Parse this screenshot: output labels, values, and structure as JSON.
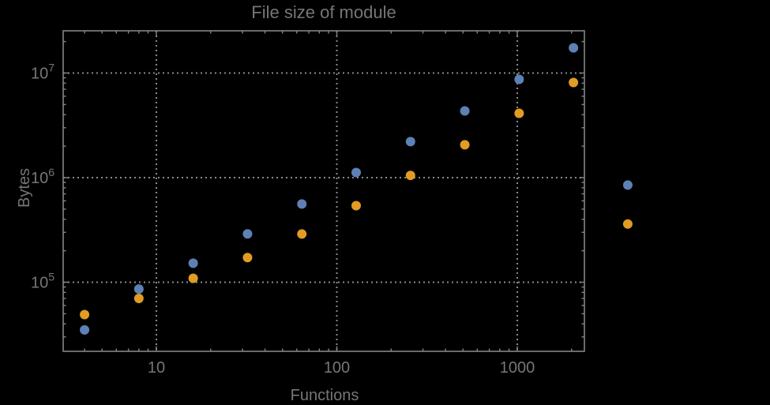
{
  "window": {
    "background": "#000000"
  },
  "chart_data": {
    "type": "scatter",
    "title": "File size of module",
    "xlabel": "Functions",
    "ylabel": "Bytes",
    "xscale": "log",
    "yscale": "log",
    "xlim": [
      3.05,
      2360
    ],
    "ylim": [
      22600,
      25300000
    ],
    "grid": {
      "style": "dotted",
      "x_values": [
        10,
        100,
        1000
      ],
      "y_values": [
        100000,
        1000000,
        10000000
      ]
    },
    "x_ticks": {
      "major": [
        {
          "value": 10,
          "label": "10"
        },
        {
          "value": 100,
          "label": "100"
        },
        {
          "value": 1000,
          "label": "1000"
        }
      ],
      "minor": "log-steps-2-to-9"
    },
    "y_ticks": {
      "major": [
        {
          "value": 100000,
          "label_base": "10",
          "label_exponent": "5"
        },
        {
          "value": 1000000,
          "label_base": "10",
          "label_exponent": "6"
        },
        {
          "value": 10000000,
          "label_base": "10",
          "label_exponent": "7"
        }
      ],
      "minor": "log-steps-2-to-9"
    },
    "legend": "none-visible",
    "marker": {
      "shape": "filled-circle",
      "radius_px": 6
    },
    "series": [
      {
        "name": "blue-series",
        "color": "#5E81B5",
        "points": [
          [
            4,
            35000
          ],
          [
            8,
            86000
          ],
          [
            16,
            152000
          ],
          [
            32,
            290000
          ],
          [
            64,
            560000
          ],
          [
            128,
            1120000
          ],
          [
            256,
            2210000
          ],
          [
            512,
            4340000
          ],
          [
            1024,
            8700000
          ],
          [
            2048,
            17400000
          ],
          [
            4096,
            850000
          ]
        ]
      },
      {
        "name": "orange-series",
        "color": "#E19C24",
        "points": [
          [
            4,
            49000
          ],
          [
            8,
            70000
          ],
          [
            16,
            109000
          ],
          [
            32,
            172000
          ],
          [
            64,
            289000
          ],
          [
            128,
            540000
          ],
          [
            256,
            1050000
          ],
          [
            512,
            2060000
          ],
          [
            1024,
            4120000
          ],
          [
            2048,
            8120000
          ],
          [
            4096,
            360000
          ]
        ]
      }
    ],
    "colors": {
      "text": "#767676",
      "frame": "#858585",
      "gridline": "#8A8A8A",
      "background": "#000000"
    }
  }
}
